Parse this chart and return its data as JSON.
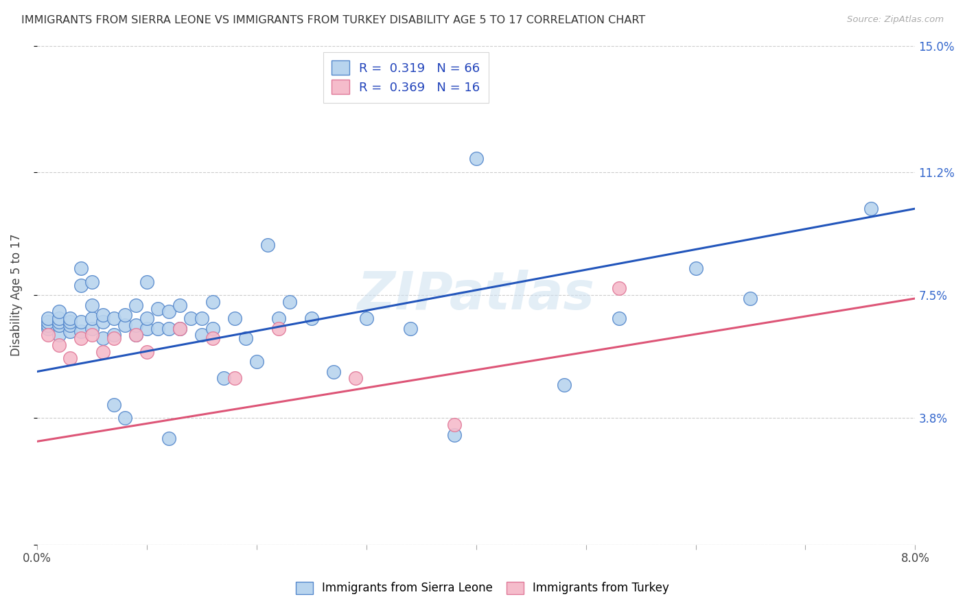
{
  "title": "IMMIGRANTS FROM SIERRA LEONE VS IMMIGRANTS FROM TURKEY DISABILITY AGE 5 TO 17 CORRELATION CHART",
  "source": "Source: ZipAtlas.com",
  "ylabel": "Disability Age 5 to 17",
  "xlim": [
    0.0,
    0.08
  ],
  "ylim": [
    0.0,
    0.15
  ],
  "xtick_positions": [
    0.0,
    0.01,
    0.02,
    0.03,
    0.04,
    0.05,
    0.06,
    0.07,
    0.08
  ],
  "xticklabels": [
    "0.0%",
    "",
    "",
    "",
    "",
    "",
    "",
    "",
    "8.0%"
  ],
  "ytick_positions": [
    0.0,
    0.038,
    0.075,
    0.112,
    0.15
  ],
  "yticklabels": [
    "",
    "3.8%",
    "7.5%",
    "11.2%",
    "15.0%"
  ],
  "sierra_leone_color": "#b8d4ee",
  "turkey_color": "#f5bccb",
  "sierra_leone_edge": "#5588cc",
  "turkey_edge": "#e07898",
  "legend_R_sierra": "0.319",
  "legend_N_sierra": "66",
  "legend_R_turkey": "0.369",
  "legend_N_turkey": "16",
  "watermark": "ZIPatlas",
  "blue_line_x": [
    0.0,
    0.08
  ],
  "blue_line_y": [
    0.052,
    0.101
  ],
  "pink_line_x": [
    0.0,
    0.08
  ],
  "pink_line_y": [
    0.031,
    0.074
  ],
  "sierra_leone_x": [
    0.001,
    0.001,
    0.001,
    0.001,
    0.002,
    0.002,
    0.002,
    0.002,
    0.002,
    0.003,
    0.003,
    0.003,
    0.003,
    0.004,
    0.004,
    0.004,
    0.004,
    0.005,
    0.005,
    0.005,
    0.005,
    0.006,
    0.006,
    0.006,
    0.007,
    0.007,
    0.007,
    0.008,
    0.008,
    0.008,
    0.009,
    0.009,
    0.009,
    0.01,
    0.01,
    0.01,
    0.011,
    0.011,
    0.012,
    0.012,
    0.012,
    0.013,
    0.013,
    0.014,
    0.015,
    0.015,
    0.016,
    0.016,
    0.017,
    0.018,
    0.019,
    0.02,
    0.021,
    0.022,
    0.023,
    0.025,
    0.027,
    0.03,
    0.034,
    0.038,
    0.04,
    0.048,
    0.053,
    0.06,
    0.065,
    0.076
  ],
  "sierra_leone_y": [
    0.065,
    0.066,
    0.067,
    0.068,
    0.063,
    0.066,
    0.067,
    0.068,
    0.07,
    0.064,
    0.066,
    0.067,
    0.068,
    0.064,
    0.067,
    0.078,
    0.083,
    0.065,
    0.068,
    0.072,
    0.079,
    0.062,
    0.067,
    0.069,
    0.042,
    0.063,
    0.068,
    0.038,
    0.066,
    0.069,
    0.063,
    0.066,
    0.072,
    0.065,
    0.068,
    0.079,
    0.065,
    0.071,
    0.032,
    0.065,
    0.07,
    0.065,
    0.072,
    0.068,
    0.063,
    0.068,
    0.065,
    0.073,
    0.05,
    0.068,
    0.062,
    0.055,
    0.09,
    0.068,
    0.073,
    0.068,
    0.052,
    0.068,
    0.065,
    0.033,
    0.116,
    0.048,
    0.068,
    0.083,
    0.074,
    0.101
  ],
  "turkey_x": [
    0.001,
    0.002,
    0.003,
    0.004,
    0.005,
    0.006,
    0.007,
    0.009,
    0.01,
    0.013,
    0.016,
    0.018,
    0.022,
    0.029,
    0.038,
    0.053
  ],
  "turkey_y": [
    0.063,
    0.06,
    0.056,
    0.062,
    0.063,
    0.058,
    0.062,
    0.063,
    0.058,
    0.065,
    0.062,
    0.05,
    0.065,
    0.05,
    0.036,
    0.077
  ]
}
